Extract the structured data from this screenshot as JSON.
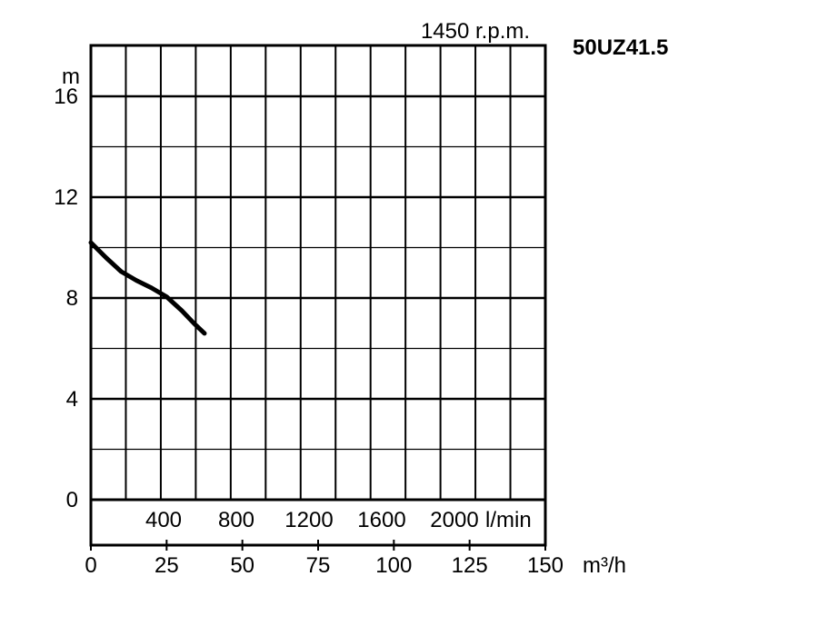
{
  "chart_data": {
    "type": "line",
    "model": "50UZ41.5",
    "speed_label": "1450 r.p.m.",
    "y_unit": "m",
    "y_ticks": [
      "0",
      "4",
      "8",
      "12",
      "16"
    ],
    "ylim": [
      0,
      18
    ],
    "flow_lmin_ticks": [
      "400",
      "800",
      "1200",
      "1600",
      "2000"
    ],
    "flow_lmin_unit": "l/min",
    "flow_m3h_ticks": [
      "0",
      "25",
      "50",
      "75",
      "100",
      "125",
      "150"
    ],
    "flow_m3h_unit": "m³/h",
    "xlim": [
      0,
      150
    ],
    "grid": true,
    "series": [
      {
        "x": [
          0,
          5,
          10,
          15,
          20,
          25,
          30,
          34,
          37.5
        ],
        "y": [
          10.2,
          9.6,
          9.05,
          8.7,
          8.4,
          8.05,
          7.5,
          7.0,
          6.6
        ]
      }
    ]
  }
}
